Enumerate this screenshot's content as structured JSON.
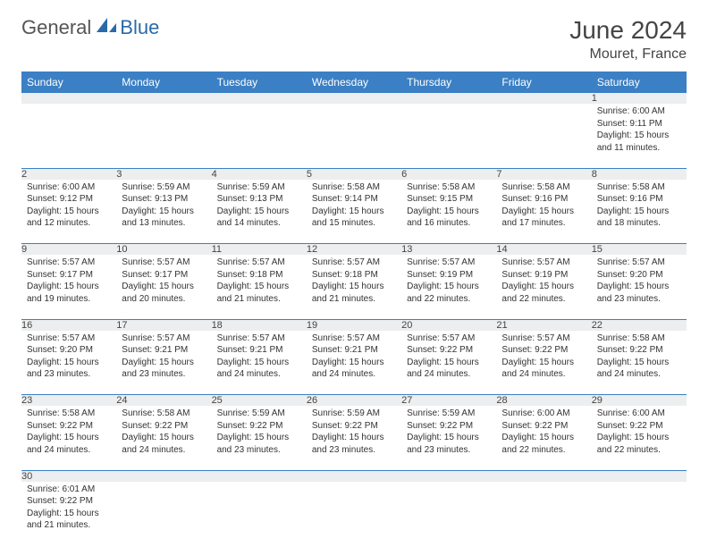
{
  "brand": {
    "part1": "General",
    "part2": "Blue"
  },
  "title": "June 2024",
  "location": "Mouret, France",
  "colors": {
    "header_bg": "#3b7fc4",
    "header_text": "#ffffff",
    "daynum_bg": "#eceeef",
    "border": "#3b7fc4",
    "brand_blue": "#2b6aa8",
    "brand_gray": "#555555"
  },
  "weekdays": [
    "Sunday",
    "Monday",
    "Tuesday",
    "Wednesday",
    "Thursday",
    "Friday",
    "Saturday"
  ],
  "weeks": [
    {
      "nums": [
        "",
        "",
        "",
        "",
        "",
        "",
        "1"
      ],
      "cells": [
        null,
        null,
        null,
        null,
        null,
        null,
        {
          "sunrise": "6:00 AM",
          "sunset": "9:11 PM",
          "daylight": "15 hours and 11 minutes."
        }
      ]
    },
    {
      "nums": [
        "2",
        "3",
        "4",
        "5",
        "6",
        "7",
        "8"
      ],
      "cells": [
        {
          "sunrise": "6:00 AM",
          "sunset": "9:12 PM",
          "daylight": "15 hours and 12 minutes."
        },
        {
          "sunrise": "5:59 AM",
          "sunset": "9:13 PM",
          "daylight": "15 hours and 13 minutes."
        },
        {
          "sunrise": "5:59 AM",
          "sunset": "9:13 PM",
          "daylight": "15 hours and 14 minutes."
        },
        {
          "sunrise": "5:58 AM",
          "sunset": "9:14 PM",
          "daylight": "15 hours and 15 minutes."
        },
        {
          "sunrise": "5:58 AM",
          "sunset": "9:15 PM",
          "daylight": "15 hours and 16 minutes."
        },
        {
          "sunrise": "5:58 AM",
          "sunset": "9:16 PM",
          "daylight": "15 hours and 17 minutes."
        },
        {
          "sunrise": "5:58 AM",
          "sunset": "9:16 PM",
          "daylight": "15 hours and 18 minutes."
        }
      ]
    },
    {
      "nums": [
        "9",
        "10",
        "11",
        "12",
        "13",
        "14",
        "15"
      ],
      "cells": [
        {
          "sunrise": "5:57 AM",
          "sunset": "9:17 PM",
          "daylight": "15 hours and 19 minutes."
        },
        {
          "sunrise": "5:57 AM",
          "sunset": "9:17 PM",
          "daylight": "15 hours and 20 minutes."
        },
        {
          "sunrise": "5:57 AM",
          "sunset": "9:18 PM",
          "daylight": "15 hours and 21 minutes."
        },
        {
          "sunrise": "5:57 AM",
          "sunset": "9:18 PM",
          "daylight": "15 hours and 21 minutes."
        },
        {
          "sunrise": "5:57 AM",
          "sunset": "9:19 PM",
          "daylight": "15 hours and 22 minutes."
        },
        {
          "sunrise": "5:57 AM",
          "sunset": "9:19 PM",
          "daylight": "15 hours and 22 minutes."
        },
        {
          "sunrise": "5:57 AM",
          "sunset": "9:20 PM",
          "daylight": "15 hours and 23 minutes."
        }
      ]
    },
    {
      "nums": [
        "16",
        "17",
        "18",
        "19",
        "20",
        "21",
        "22"
      ],
      "cells": [
        {
          "sunrise": "5:57 AM",
          "sunset": "9:20 PM",
          "daylight": "15 hours and 23 minutes."
        },
        {
          "sunrise": "5:57 AM",
          "sunset": "9:21 PM",
          "daylight": "15 hours and 23 minutes."
        },
        {
          "sunrise": "5:57 AM",
          "sunset": "9:21 PM",
          "daylight": "15 hours and 24 minutes."
        },
        {
          "sunrise": "5:57 AM",
          "sunset": "9:21 PM",
          "daylight": "15 hours and 24 minutes."
        },
        {
          "sunrise": "5:57 AM",
          "sunset": "9:22 PM",
          "daylight": "15 hours and 24 minutes."
        },
        {
          "sunrise": "5:57 AM",
          "sunset": "9:22 PM",
          "daylight": "15 hours and 24 minutes."
        },
        {
          "sunrise": "5:58 AM",
          "sunset": "9:22 PM",
          "daylight": "15 hours and 24 minutes."
        }
      ]
    },
    {
      "nums": [
        "23",
        "24",
        "25",
        "26",
        "27",
        "28",
        "29"
      ],
      "cells": [
        {
          "sunrise": "5:58 AM",
          "sunset": "9:22 PM",
          "daylight": "15 hours and 24 minutes."
        },
        {
          "sunrise": "5:58 AM",
          "sunset": "9:22 PM",
          "daylight": "15 hours and 24 minutes."
        },
        {
          "sunrise": "5:59 AM",
          "sunset": "9:22 PM",
          "daylight": "15 hours and 23 minutes."
        },
        {
          "sunrise": "5:59 AM",
          "sunset": "9:22 PM",
          "daylight": "15 hours and 23 minutes."
        },
        {
          "sunrise": "5:59 AM",
          "sunset": "9:22 PM",
          "daylight": "15 hours and 23 minutes."
        },
        {
          "sunrise": "6:00 AM",
          "sunset": "9:22 PM",
          "daylight": "15 hours and 22 minutes."
        },
        {
          "sunrise": "6:00 AM",
          "sunset": "9:22 PM",
          "daylight": "15 hours and 22 minutes."
        }
      ]
    },
    {
      "nums": [
        "30",
        "",
        "",
        "",
        "",
        "",
        ""
      ],
      "cells": [
        {
          "sunrise": "6:01 AM",
          "sunset": "9:22 PM",
          "daylight": "15 hours and 21 minutes."
        },
        null,
        null,
        null,
        null,
        null,
        null
      ]
    }
  ],
  "labels": {
    "sunrise": "Sunrise:",
    "sunset": "Sunset:",
    "daylight": "Daylight:"
  }
}
